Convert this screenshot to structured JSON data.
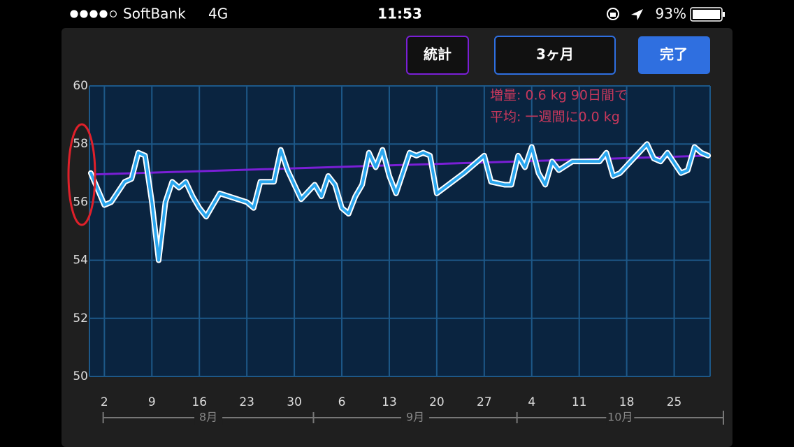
{
  "status_bar": {
    "carrier": "SoftBank",
    "network": "4G",
    "time": "11:53",
    "battery": "93%"
  },
  "buttons": [
    {
      "label": "統計"
    },
    {
      "label": "3ヶ月"
    },
    {
      "label": "完了"
    }
  ],
  "chart_data": {
    "type": "line",
    "annotations": [
      "増量: 0.6 kg 90日間で",
      "平均: 一週間に0.0 kg"
    ],
    "x": [
      -1,
      1,
      2,
      4,
      5,
      6,
      7,
      8,
      9,
      10,
      11,
      12,
      13,
      14,
      15,
      16,
      18,
      22,
      23,
      24,
      26,
      27,
      28,
      30,
      32,
      33,
      34,
      35,
      36,
      37,
      38,
      39,
      40,
      41,
      42,
      43,
      44,
      46,
      47,
      48,
      49,
      50,
      54,
      57,
      58,
      60,
      61,
      62,
      63,
      64,
      65,
      66,
      67,
      68,
      70,
      74,
      75,
      76,
      77,
      79,
      81,
      82,
      83,
      84,
      86,
      87,
      88,
      89,
      90
    ],
    "series": [
      {
        "color": "#2aa6ee",
        "values": [
          57.0,
          55.9,
          56.0,
          56.7,
          56.8,
          57.7,
          57.6,
          56.0,
          54.0,
          56.0,
          56.7,
          56.5,
          56.7,
          56.2,
          55.8,
          55.5,
          56.3,
          56.0,
          55.8,
          56.7,
          56.7,
          57.8,
          57.1,
          56.1,
          56.6,
          56.2,
          56.9,
          56.6,
          55.8,
          55.6,
          56.2,
          56.6,
          57.7,
          57.2,
          57.8,
          56.9,
          56.3,
          57.7,
          57.6,
          57.7,
          57.6,
          56.3,
          57.0,
          57.6,
          56.7,
          56.6,
          56.6,
          57.6,
          57.2,
          57.9,
          57.0,
          56.6,
          57.4,
          57.1,
          57.4,
          57.4,
          57.7,
          56.9,
          57.0,
          57.5,
          58.0,
          57.5,
          57.4,
          57.7,
          57.0,
          57.1,
          57.9,
          57.7,
          57.6
        ]
      }
    ],
    "trend": {
      "color": "#7a1fd6",
      "x": [
        -1,
        90
      ],
      "values": [
        56.95,
        57.6
      ]
    },
    "xlim": [
      -1.2,
      90.3
    ],
    "xticks": [
      {
        "value": 1,
        "label": "2"
      },
      {
        "value": 8,
        "label": "9"
      },
      {
        "value": 15,
        "label": "16"
      },
      {
        "value": 22,
        "label": "23"
      },
      {
        "value": 29,
        "label": "30"
      },
      {
        "value": 36,
        "label": "6"
      },
      {
        "value": 43,
        "label": "13"
      },
      {
        "value": 50,
        "label": "20"
      },
      {
        "value": 57,
        "label": "27"
      },
      {
        "value": 64,
        "label": "4"
      },
      {
        "value": 71,
        "label": "11"
      },
      {
        "value": 78,
        "label": "18"
      },
      {
        "value": 85,
        "label": "25"
      }
    ],
    "months": [
      {
        "label": "8月",
        "start": 0
      },
      {
        "label": "9月",
        "start": 31
      },
      {
        "label": "10月",
        "start": 61
      }
    ],
    "ylim": [
      50,
      60
    ],
    "yticks": [
      50,
      52,
      54,
      56,
      58,
      60
    ],
    "grid": true
  }
}
